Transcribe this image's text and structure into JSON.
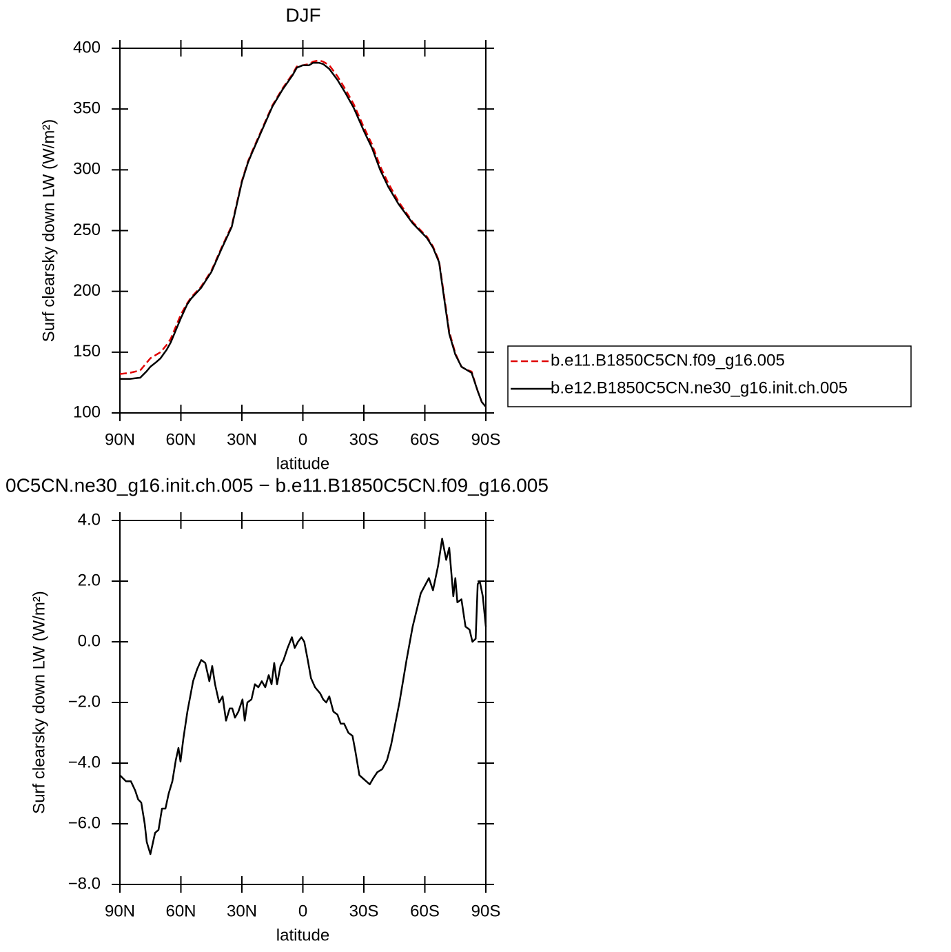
{
  "chart_data": [
    {
      "type": "line",
      "title": "DJF",
      "xlabel": "latitude",
      "ylabel": "Surf clearsky down LW (W/m²)",
      "x": [
        90,
        85,
        80,
        77,
        75,
        72,
        70,
        67,
        65,
        62,
        60,
        57,
        55,
        50,
        45,
        40,
        35,
        30,
        27,
        25,
        20,
        15,
        10,
        5,
        3,
        0,
        -3,
        -5,
        -8,
        -10,
        -13,
        -17,
        -21,
        -25,
        -30,
        -34,
        -38,
        -42,
        -47,
        -54,
        -61,
        -64,
        -67,
        -69,
        -72,
        -75,
        -78,
        -80,
        -83,
        -86,
        -88,
        -90
      ],
      "series": [
        {
          "name": "b.e11.B1850C5CN.f09_g16.005",
          "color": "#e00000",
          "linestyle": "dashed",
          "values": [
            132,
            133,
            135,
            141,
            145,
            148,
            150,
            156,
            161,
            173,
            181,
            190,
            195,
            204,
            217,
            236,
            254,
            291,
            307,
            315,
            334,
            353,
            367,
            379,
            385,
            386,
            387,
            389,
            390,
            389,
            386,
            377,
            366,
            354,
            335,
            321,
            303,
            289,
            274,
            257,
            245,
            237,
            225,
            202,
            167,
            149,
            138,
            136,
            134,
            118,
            109,
            105
          ]
        },
        {
          "name": "b.e12.B1850C5CN.ne30_g16.init.ch.005",
          "color": "#000000",
          "linestyle": "solid",
          "values": [
            128,
            128,
            129,
            134,
            138,
            142,
            145,
            152,
            158,
            170,
            178,
            189,
            194,
            203,
            216,
            235,
            253,
            290,
            306,
            314,
            333,
            352,
            366,
            378,
            384,
            386,
            386,
            388,
            388,
            387,
            383,
            374,
            363,
            351,
            332,
            318,
            300,
            286,
            272,
            256,
            244,
            236,
            224,
            200,
            165,
            148,
            138,
            136,
            133,
            118,
            109,
            105
          ]
        }
      ],
      "xlim": [
        90,
        -90
      ],
      "xticks": [
        {
          "value": 90,
          "label": "90N"
        },
        {
          "value": 60,
          "label": "60N"
        },
        {
          "value": 30,
          "label": "30N"
        },
        0,
        {
          "value": -30,
          "label": "30S"
        },
        {
          "value": -60,
          "label": "60S"
        },
        {
          "value": -90,
          "label": "90S"
        }
      ],
      "ylim": [
        100,
        400
      ],
      "yticks": [
        100,
        150,
        200,
        250,
        300,
        350,
        400
      ],
      "legend": "right"
    },
    {
      "type": "line",
      "title": "0C5CN.ne30_g16.init.ch.005 − b.e11.B1850C5CN.f09_g16.005",
      "xlabel": "latitude",
      "ylabel": "Surf clearsky down LW (W/m²)",
      "x": [
        90,
        87,
        84.6,
        82.5,
        81,
        79.5,
        77.8,
        76.8,
        75,
        72.7,
        71,
        69.3,
        67.6,
        66,
        64.2,
        62.5,
        61.2,
        60.2,
        58.8,
        56.8,
        54,
        52,
        50,
        48,
        46,
        44.6,
        43.2,
        41.2,
        39.5,
        37.8,
        36,
        34.7,
        33.4,
        31.7,
        29.7,
        28.6,
        27.3,
        25.3,
        23.6,
        21.9,
        20.2,
        18.5,
        16.8,
        15.4,
        14.1,
        12.7,
        11,
        9.5,
        7.5,
        5.4,
        4,
        2.4,
        0.7,
        -0.7,
        -2.4,
        -4,
        -6,
        -8.5,
        -10,
        -11.5,
        -13,
        -15,
        -17,
        -18.6,
        -20.3,
        -22.4,
        -24.4,
        -25.8,
        -27.8,
        -29.5,
        -31.2,
        -32.9,
        -34.6,
        -36.6,
        -39,
        -41.4,
        -43.4,
        -47.5,
        -51,
        -54,
        -58,
        -62,
        -64,
        -66.5,
        -68.5,
        -70.5,
        -72,
        -74,
        -75,
        -76,
        -78,
        -80,
        -82,
        -83.4,
        -85,
        -86,
        -87,
        -88.5,
        -90
      ],
      "values": [
        -4.4,
        -4.6,
        -4.6,
        -4.9,
        -5.2,
        -5.3,
        -6.0,
        -6.6,
        -7.0,
        -6.3,
        -6.2,
        -5.5,
        -5.5,
        -5.0,
        -4.6,
        -3.9,
        -3.5,
        -3.95,
        -3.2,
        -2.3,
        -1.3,
        -0.9,
        -0.6,
        -0.7,
        -1.3,
        -0.8,
        -1.4,
        -2.0,
        -1.8,
        -2.6,
        -2.2,
        -2.2,
        -2.5,
        -2.3,
        -1.9,
        -2.6,
        -2.0,
        -1.9,
        -1.4,
        -1.5,
        -1.3,
        -1.5,
        -1.1,
        -1.4,
        -0.7,
        -1.4,
        -0.8,
        -0.6,
        -0.2,
        0.15,
        -0.2,
        0.0,
        0.15,
        0.0,
        -0.6,
        -1.2,
        -1.5,
        -1.7,
        -1.9,
        -2.0,
        -1.8,
        -2.3,
        -2.4,
        -2.7,
        -2.7,
        -3.0,
        -3.1,
        -3.6,
        -4.4,
        -4.5,
        -4.6,
        -4.7,
        -4.5,
        -4.3,
        -4.2,
        -3.9,
        -3.4,
        -2.0,
        -0.6,
        0.5,
        1.6,
        2.1,
        1.7,
        2.5,
        3.4,
        2.7,
        3.1,
        1.5,
        2.1,
        1.3,
        1.4,
        0.5,
        0.4,
        0.0,
        0.1,
        1.9,
        2.0,
        1.5,
        0.5
      ],
      "color": "#000000",
      "linestyle": "solid",
      "xlim": [
        90,
        -90
      ],
      "xticks": [
        {
          "value": 90,
          "label": "90N"
        },
        {
          "value": 60,
          "label": "60N"
        },
        {
          "value": 30,
          "label": "30N"
        },
        0,
        {
          "value": -30,
          "label": "30S"
        },
        {
          "value": -60,
          "label": "60S"
        },
        {
          "value": -90,
          "label": "90S"
        }
      ],
      "ylim": [
        -8,
        4
      ],
      "yticks": [
        {
          "value": -8,
          "label": "−8.0"
        },
        {
          "value": -6,
          "label": "−6.0"
        },
        {
          "value": -4,
          "label": "−4.0"
        },
        {
          "value": -2,
          "label": "−2.0"
        },
        {
          "value": 0,
          "label": "0.0"
        },
        {
          "value": 2,
          "label": "2.0"
        },
        {
          "value": 4,
          "label": "4.0"
        }
      ]
    }
  ]
}
